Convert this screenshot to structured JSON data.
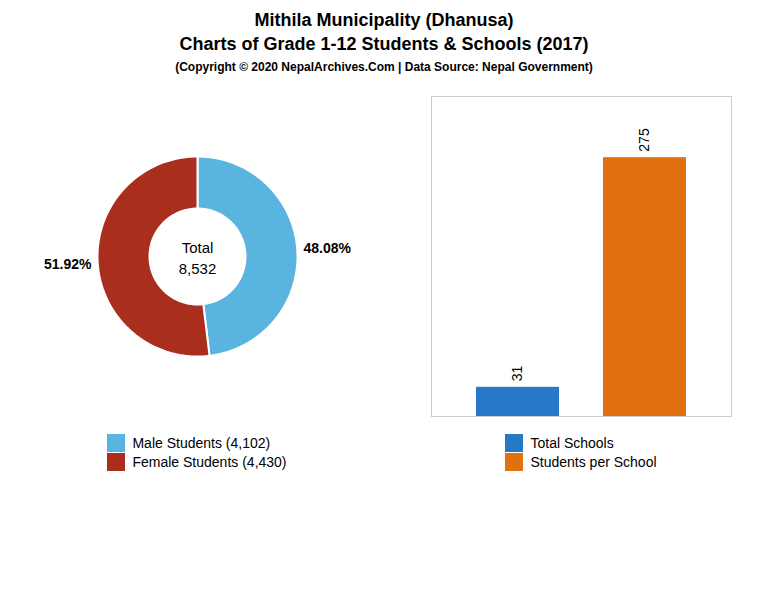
{
  "chart_data": [
    {
      "type": "pie",
      "title": [
        "Mithila Municipality (Dhanusa)",
        "Charts of Grade 1-12 Students & Schools (2017)"
      ],
      "subtitle": "(Copyright © 2020 NepalArchives.Com | Data Source: Nepal Government)",
      "categories": [
        "Male Students (4,102)",
        "Female Students (4,430)"
      ],
      "values": [
        48.08,
        51.92
      ],
      "value_labels": [
        "48.08%",
        "51.92%"
      ],
      "colors": [
        "#5ab4e0",
        "#aa2e1e"
      ],
      "annotations": [
        "Total",
        "8,532"
      ],
      "data_labels": true,
      "legend": "bottom",
      "grid": false
    },
    {
      "type": "bar",
      "categories": [
        "Total Schools",
        "Students per School"
      ],
      "values": [
        31,
        275
      ],
      "colors": [
        "#2878c8",
        "#e07010"
      ],
      "ylim": [
        0,
        340
      ],
      "data_labels": true,
      "tick_labels": false,
      "legend": "bottom",
      "grid": false
    }
  ]
}
